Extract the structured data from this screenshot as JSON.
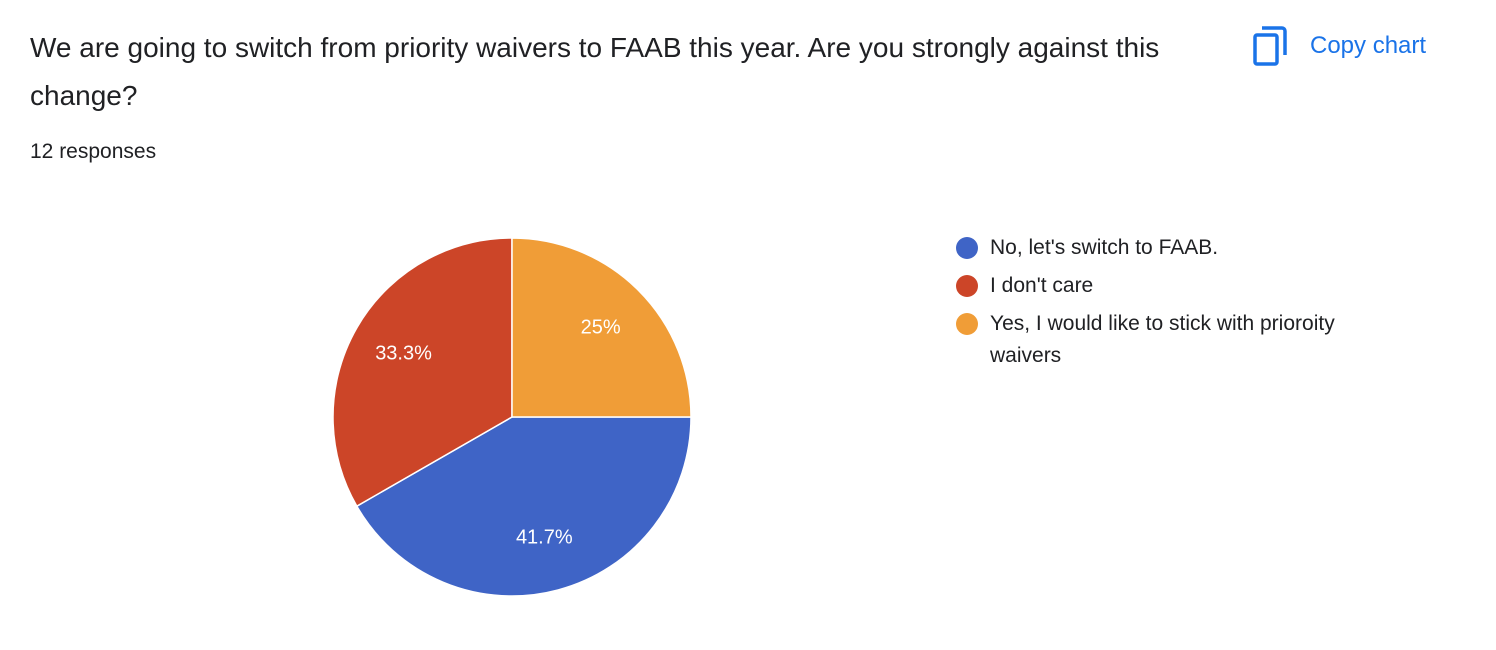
{
  "chart_data": {
    "type": "pie",
    "title": "We are going to switch from priority waivers to FAAB this year. Are you strongly against this change?",
    "subtitle": "12 responses",
    "categories": [
      "No, let's switch to FAAB.",
      "I don't care",
      "Yes, I would like to stick with prioroity waivers"
    ],
    "values": [
      41.7,
      33.3,
      25
    ],
    "value_labels": [
      "41.7%",
      "33.3%",
      "25%"
    ],
    "colors": [
      "#3f64c6",
      "#cc4528",
      "#f09d37"
    ]
  },
  "copy_button": "Copy chart"
}
